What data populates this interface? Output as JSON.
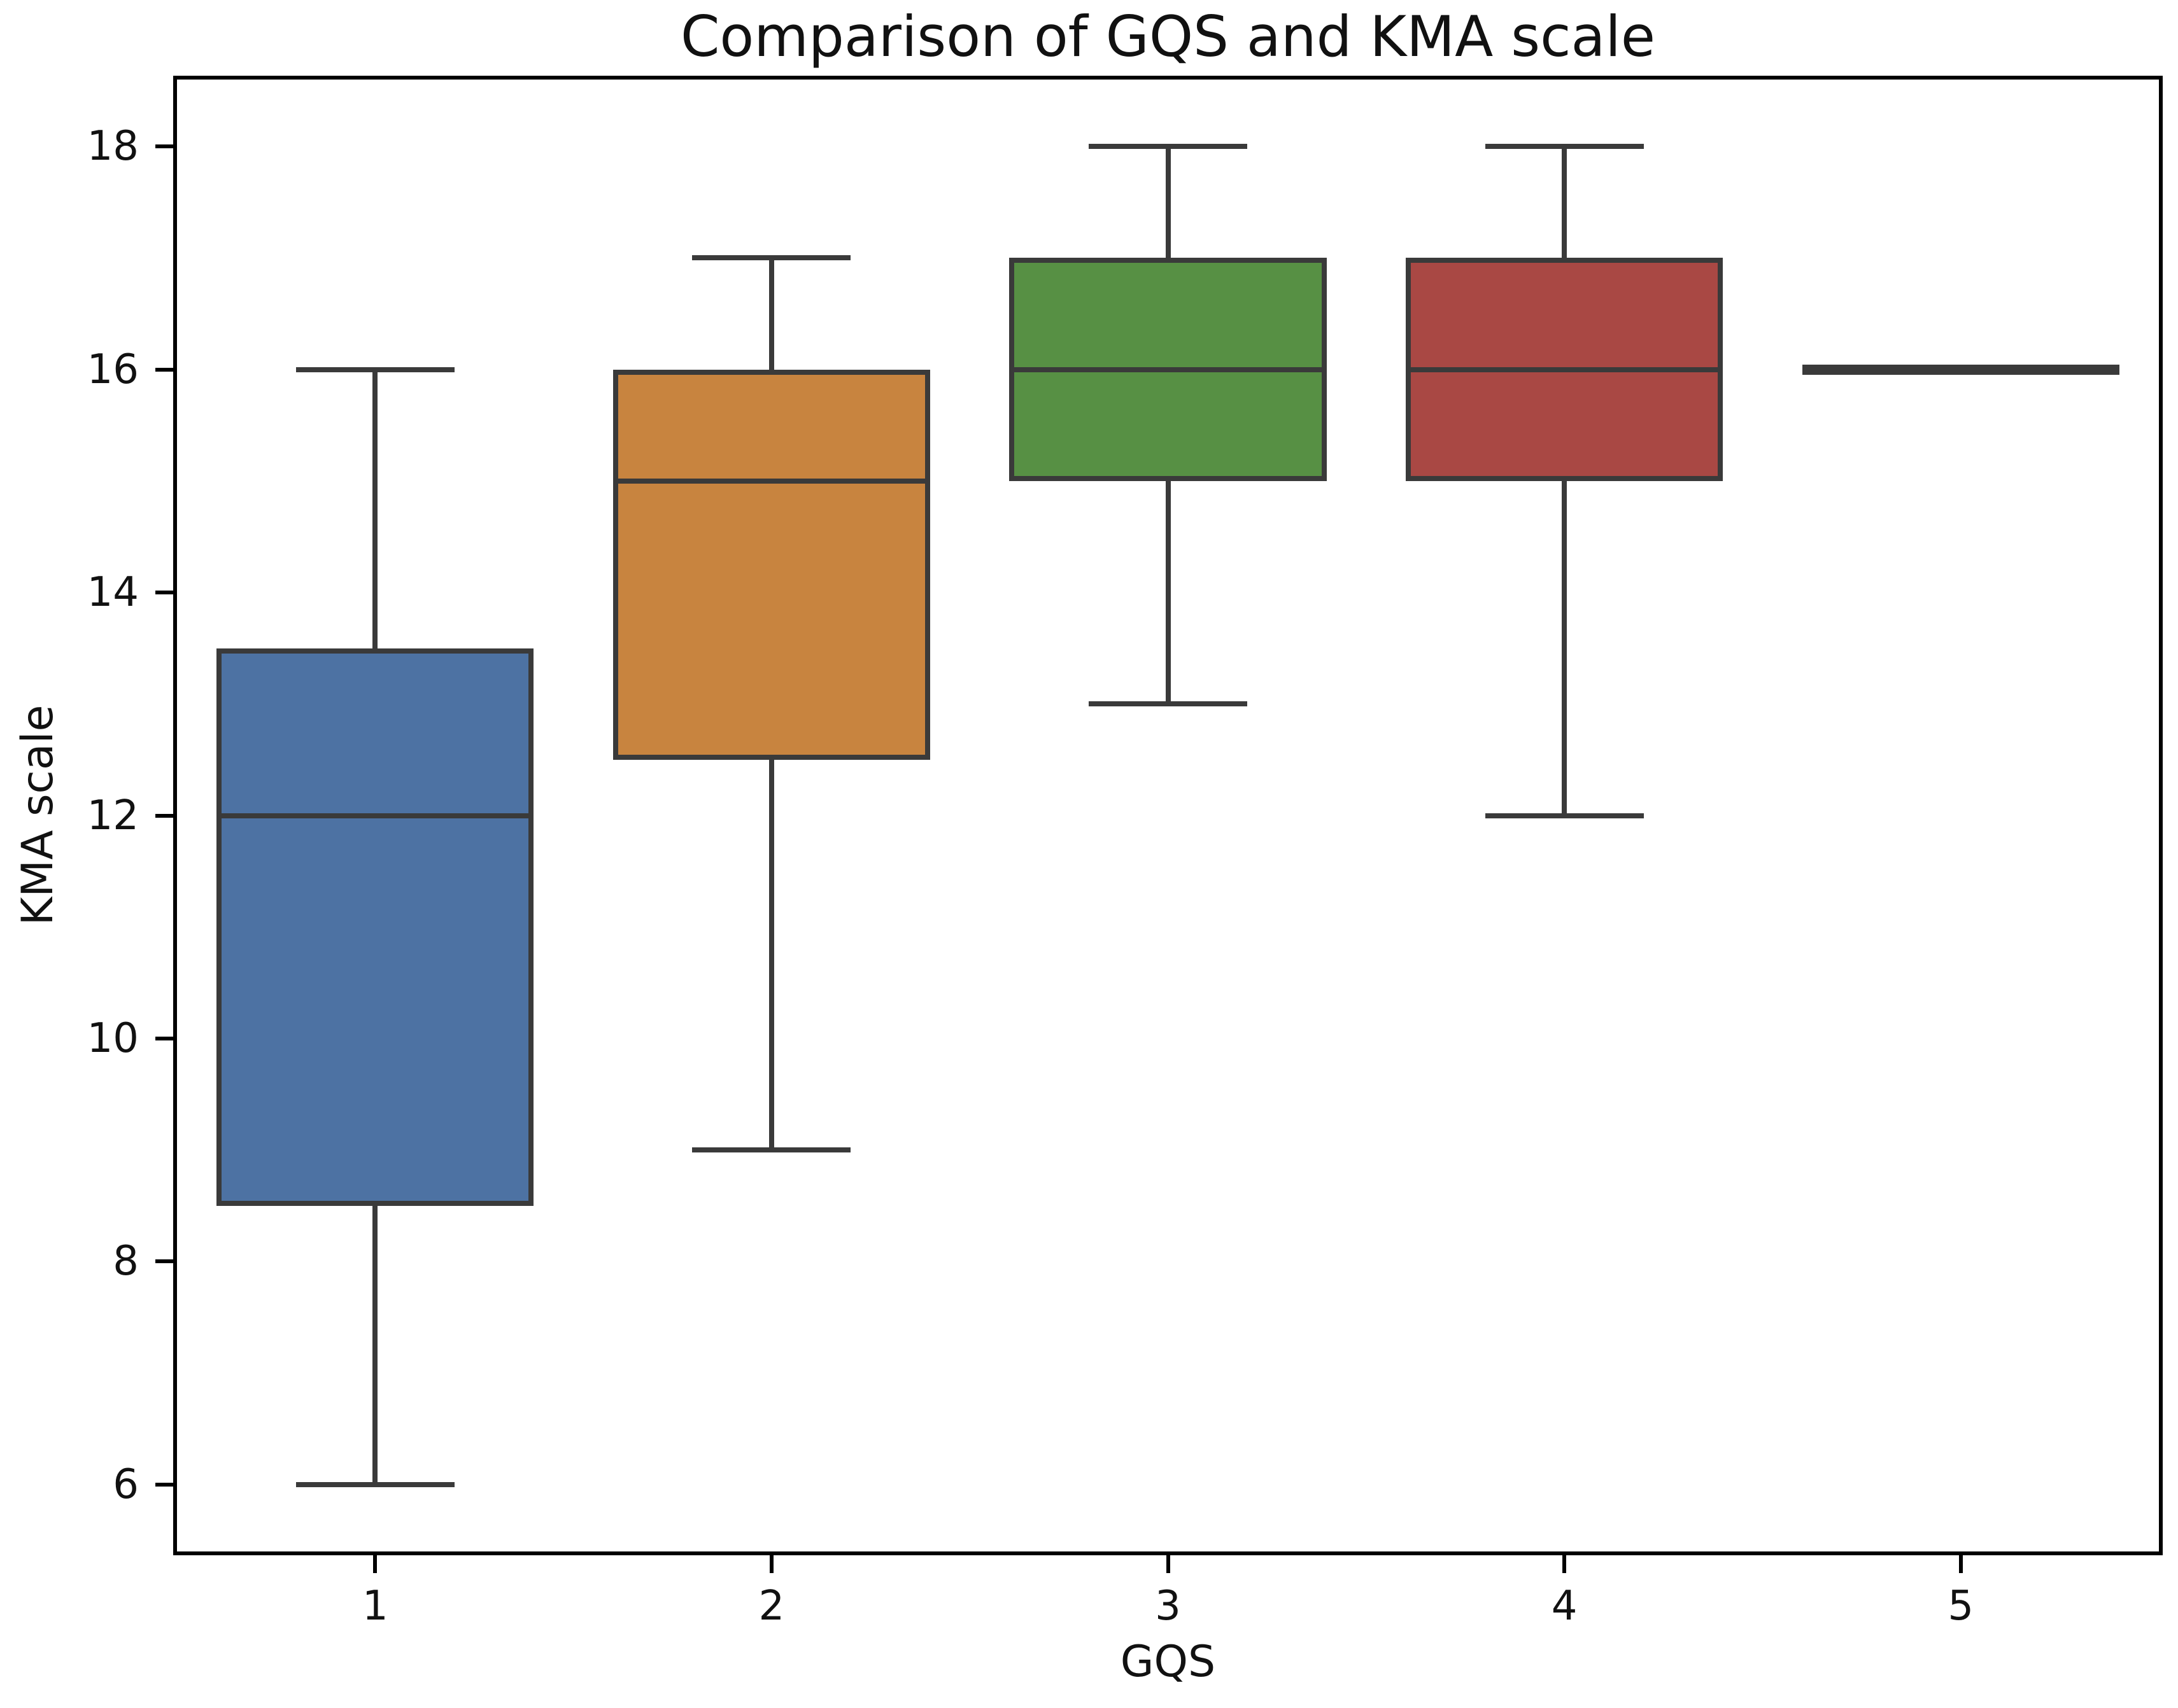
{
  "chart_data": {
    "type": "box",
    "title": "Comparison of GQS and KMA scale",
    "xlabel": "GQS",
    "ylabel": "KMA scale",
    "categories": [
      "1",
      "2",
      "3",
      "4",
      "5"
    ],
    "yticks": [
      6,
      8,
      10,
      12,
      14,
      16,
      18
    ],
    "ylim": [
      5.4,
      18.6
    ],
    "grid": false,
    "legend": "none",
    "box_width_fraction": 0.8,
    "cap_width_fraction": 0.4,
    "edge_color": "#3a3a3a",
    "spine_color": "#000000",
    "text_color": "#111111",
    "boxes": [
      {
        "category": "1",
        "whisker_low": 6,
        "q1": 8.5,
        "median": 12,
        "q3": 13.5,
        "whisker_high": 16,
        "fill_color": "#4d72a3"
      },
      {
        "category": "2",
        "whisker_low": 9,
        "q1": 12.5,
        "median": 15,
        "q3": 16,
        "whisker_high": 17,
        "fill_color": "#c8843f"
      },
      {
        "category": "3",
        "whisker_low": 13,
        "q1": 15,
        "median": 16,
        "q3": 17,
        "whisker_high": 18,
        "fill_color": "#579044"
      },
      {
        "category": "4",
        "whisker_low": 12,
        "q1": 15,
        "median": 16,
        "q3": 17,
        "whisker_high": 18,
        "fill_color": "#a94844"
      },
      {
        "category": "5",
        "whisker_low": 16,
        "q1": 16,
        "median": 16,
        "q3": 16,
        "whisker_high": 16,
        "fill_color": "#3a3a3a"
      }
    ]
  }
}
